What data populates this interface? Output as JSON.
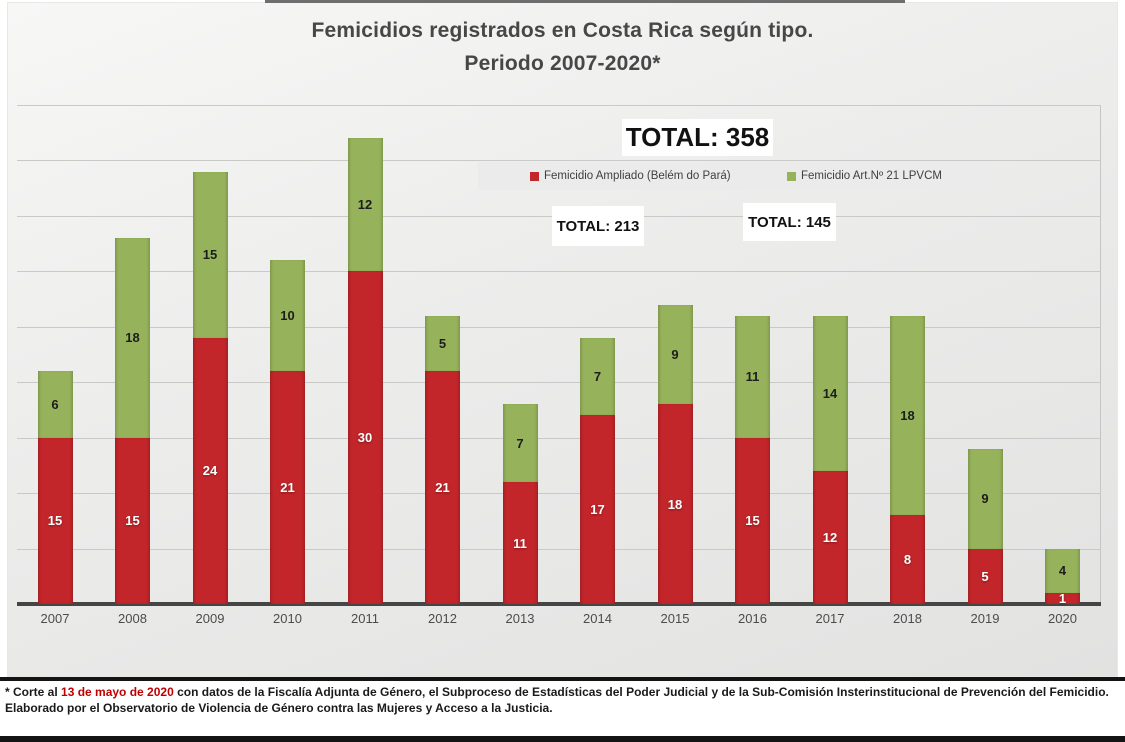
{
  "title": {
    "line1": "Femicidios registrados en Costa Rica según tipo.",
    "line2": "Periodo 2007-2020*"
  },
  "totals": {
    "overall": "TOTAL: 358",
    "ampliado": "TOTAL: 213",
    "art21": "TOTAL: 145"
  },
  "legend": {
    "items": [
      {
        "label": "Femicidio Ampliado (Belém do Pará)",
        "color": "#c2262a"
      },
      {
        "label": "Femicidio Art.Nº 21 LPVCM",
        "color": "#96b35b"
      }
    ]
  },
  "footnote": {
    "prefix": "* Corte al ",
    "highlight": "13 de mayo de 2020",
    "rest": " con datos de la Fiscalía Adjunta de Género, el Subproceso de Estadísticas del Poder Judicial y de la Sub-Comisión Insterinstitucional de Prevención del Femicidio.",
    "line2": "Elaborado por el Observatorio de Violencia de Género contra las Mujeres y Acceso a la Justicia."
  },
  "chart_data": {
    "type": "bar",
    "stacked": true,
    "title": "Femicidios registrados en Costa Rica según tipo. Periodo 2007-2020*",
    "categories": [
      "2007",
      "2008",
      "2009",
      "2010",
      "2011",
      "2012",
      "2013",
      "2014",
      "2015",
      "2016",
      "2017",
      "2018",
      "2019",
      "2020"
    ],
    "series": [
      {
        "name": "Femicidio Ampliado (Belém do Pará)",
        "color": "#c2262a",
        "label_color": "#ffffff",
        "values": [
          15,
          15,
          24,
          21,
          30,
          21,
          11,
          17,
          18,
          15,
          12,
          8,
          5,
          1
        ],
        "total": 213
      },
      {
        "name": "Femicidio Art.Nº 21 LPVCM",
        "color": "#96b35b",
        "label_color": "#1d1d1d",
        "values": [
          6,
          18,
          15,
          10,
          12,
          5,
          7,
          7,
          9,
          11,
          14,
          18,
          9,
          4
        ],
        "total": 145
      }
    ],
    "grand_total": 358,
    "xlabel": "",
    "ylabel": "",
    "ylim": [
      0,
      45
    ],
    "grid_step": 5,
    "grid": true,
    "y_axis_labels_visible": false,
    "legend_position": "top-center",
    "data_labels": true
  }
}
